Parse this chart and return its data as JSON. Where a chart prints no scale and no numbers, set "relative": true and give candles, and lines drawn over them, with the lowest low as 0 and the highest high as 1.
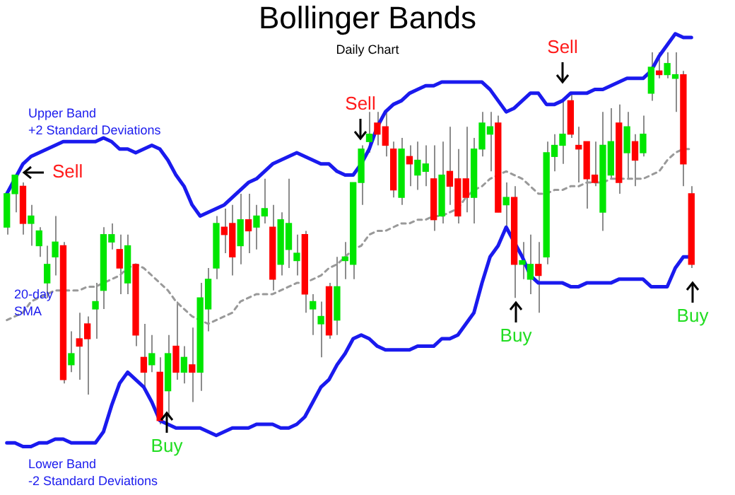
{
  "chart_data": {
    "type": "candlestick",
    "title": "Bollinger Bands",
    "subtitle": "Daily Chart",
    "relative": true,
    "tick_labels": false,
    "categories": [
      null,
      null,
      null,
      null,
      null,
      null,
      null,
      null,
      null,
      null,
      null,
      null,
      null,
      null,
      null,
      null,
      null,
      null,
      null,
      null,
      null,
      null,
      null,
      null,
      null,
      null,
      null,
      null,
      null,
      null,
      null,
      null,
      null,
      null,
      null,
      null,
      null,
      null,
      null,
      null,
      null,
      null,
      null,
      null,
      null,
      null,
      null,
      null,
      null,
      null,
      null,
      null,
      null,
      null,
      null,
      null,
      null,
      null,
      null,
      null,
      null,
      null,
      null,
      null,
      null,
      null,
      null,
      null,
      null,
      null,
      null,
      null,
      null,
      null,
      null,
      null,
      null,
      null,
      null,
      null,
      null,
      null,
      null,
      null,
      null,
      null
    ],
    "ohlc": [
      [
        0.53,
        0.62,
        0.51,
        0.62
      ],
      [
        0.62,
        0.67,
        0.57,
        0.67
      ],
      [
        0.64,
        0.65,
        0.51,
        0.54
      ],
      [
        0.54,
        0.59,
        0.48,
        0.56
      ],
      [
        0.48,
        0.53,
        0.45,
        0.52
      ],
      [
        0.38,
        0.48,
        0.34,
        0.43
      ],
      [
        0.45,
        0.56,
        0.4,
        0.49
      ],
      [
        0.48,
        0.49,
        0.11,
        0.12
      ],
      [
        0.16,
        0.25,
        0.14,
        0.19
      ],
      [
        0.23,
        0.3,
        0.12,
        0.21
      ],
      [
        0.27,
        0.29,
        0.08,
        0.23
      ],
      [
        0.31,
        0.38,
        0.23,
        0.33
      ],
      [
        0.36,
        0.53,
        0.31,
        0.51
      ],
      [
        0.49,
        0.54,
        0.47,
        0.51
      ],
      [
        0.47,
        0.51,
        0.35,
        0.42
      ],
      [
        0.38,
        0.51,
        0.35,
        0.48
      ],
      [
        0.43,
        0.43,
        0.21,
        0.24
      ],
      [
        0.18,
        0.27,
        0.1,
        0.14
      ],
      [
        0.16,
        0.24,
        0.14,
        0.19
      ],
      [
        0.14,
        0.18,
        0.0,
        0.01
      ],
      [
        0.09,
        0.24,
        0.02,
        0.19
      ],
      [
        0.21,
        0.33,
        0.12,
        0.14
      ],
      [
        0.14,
        0.21,
        0.11,
        0.18
      ],
      [
        0.16,
        0.26,
        0.06,
        0.14
      ],
      [
        0.14,
        0.38,
        0.09,
        0.34
      ],
      [
        0.31,
        0.42,
        0.25,
        0.39
      ],
      [
        0.42,
        0.56,
        0.39,
        0.54
      ],
      [
        0.53,
        0.58,
        0.46,
        0.51
      ],
      [
        0.54,
        0.59,
        0.4,
        0.45
      ],
      [
        0.48,
        0.62,
        0.43,
        0.55
      ],
      [
        0.55,
        0.62,
        0.46,
        0.52
      ],
      [
        0.53,
        0.59,
        0.47,
        0.56
      ],
      [
        0.56,
        0.66,
        0.54,
        0.58
      ],
      [
        0.53,
        0.59,
        0.36,
        0.39
      ],
      [
        0.43,
        0.57,
        0.4,
        0.55
      ],
      [
        0.47,
        0.66,
        0.42,
        0.54
      ],
      [
        0.44,
        0.51,
        0.4,
        0.46
      ],
      [
        0.51,
        0.52,
        0.3,
        0.35
      ],
      [
        0.31,
        0.35,
        0.24,
        0.33
      ],
      [
        0.27,
        0.33,
        0.18,
        0.29
      ],
      [
        0.37,
        0.38,
        0.23,
        0.24
      ],
      [
        0.28,
        0.45,
        0.24,
        0.37
      ],
      [
        0.44,
        0.49,
        0.39,
        0.45
      ],
      [
        0.43,
        0.65,
        0.39,
        0.65
      ],
      [
        0.65,
        0.75,
        0.59,
        0.74
      ],
      [
        0.76,
        0.84,
        0.73,
        0.78
      ],
      [
        0.81,
        0.84,
        0.75,
        0.78
      ],
      [
        0.8,
        0.84,
        0.72,
        0.75
      ],
      [
        0.74,
        0.76,
        0.61,
        0.63
      ],
      [
        0.61,
        0.77,
        0.59,
        0.74
      ],
      [
        0.72,
        0.75,
        0.64,
        0.7
      ],
      [
        0.67,
        0.76,
        0.63,
        0.71
      ],
      [
        0.68,
        0.75,
        0.64,
        0.7
      ],
      [
        0.66,
        0.75,
        0.52,
        0.55
      ],
      [
        0.56,
        0.76,
        0.54,
        0.67
      ],
      [
        0.68,
        0.8,
        0.59,
        0.64
      ],
      [
        0.66,
        0.74,
        0.54,
        0.56
      ],
      [
        0.66,
        0.8,
        0.57,
        0.61
      ],
      [
        0.61,
        0.77,
        0.54,
        0.74
      ],
      [
        0.74,
        0.84,
        0.72,
        0.81
      ],
      [
        0.78,
        0.84,
        0.68,
        0.8
      ],
      [
        0.81,
        0.83,
        0.57,
        0.57
      ],
      [
        0.59,
        0.65,
        0.53,
        0.61
      ],
      [
        0.61,
        0.64,
        0.34,
        0.43
      ],
      [
        0.43,
        0.49,
        0.39,
        0.44
      ],
      [
        0.39,
        0.51,
        0.35,
        0.43
      ],
      [
        0.43,
        0.49,
        0.3,
        0.4
      ],
      [
        0.45,
        0.76,
        0.43,
        0.73
      ],
      [
        0.72,
        0.78,
        0.68,
        0.75
      ],
      [
        0.75,
        0.87,
        0.7,
        0.78
      ],
      [
        0.87,
        0.89,
        0.77,
        0.78
      ],
      [
        0.75,
        0.8,
        0.65,
        0.74
      ],
      [
        0.76,
        0.76,
        0.58,
        0.66
      ],
      [
        0.67,
        0.76,
        0.64,
        0.65
      ],
      [
        0.57,
        0.84,
        0.52,
        0.75
      ],
      [
        0.67,
        0.85,
        0.66,
        0.76
      ],
      [
        0.81,
        0.86,
        0.62,
        0.65
      ],
      [
        0.73,
        0.84,
        0.66,
        0.8
      ],
      [
        0.76,
        0.78,
        0.64,
        0.71
      ],
      [
        0.73,
        0.83,
        0.72,
        0.78
      ],
      [
        0.89,
        1.0,
        0.87,
        0.96
      ],
      [
        0.95,
        1.0,
        0.93,
        0.94
      ],
      [
        0.94,
        1.0,
        0.93,
        0.97
      ],
      [
        0.93,
        1.0,
        0.84,
        0.94
      ],
      [
        0.94,
        0.95,
        0.64,
        0.7
      ],
      [
        0.62,
        0.64,
        0.42,
        0.43
      ]
    ],
    "colors": [
      "#00e600",
      "#00e600",
      "#ff0000",
      "#00e600",
      "#00e600",
      "#00e600",
      "#00e600",
      "#ff0000",
      "#00e600",
      "#ff0000",
      "#ff0000",
      "#00e600",
      "#00e600",
      "#00e600",
      "#ff0000",
      "#00e600",
      "#ff0000",
      "#ff0000",
      "#00e600",
      "#ff0000",
      "#00e600",
      "#ff0000",
      "#00e600",
      "#ff0000",
      "#00e600",
      "#00e600",
      "#00e600",
      "#ff0000",
      "#ff0000",
      "#00e600",
      "#ff0000",
      "#00e600",
      "#00e600",
      "#ff0000",
      "#00e600",
      "#00e600",
      "#00e600",
      "#ff0000",
      "#00e600",
      "#00e600",
      "#ff0000",
      "#00e600",
      "#00e600",
      "#00e600",
      "#00e600",
      "#00e600",
      "#ff0000",
      "#ff0000",
      "#ff0000",
      "#00e600",
      "#ff0000",
      "#00e600",
      "#00e600",
      "#ff0000",
      "#00e600",
      "#ff0000",
      "#ff0000",
      "#ff0000",
      "#00e600",
      "#00e600",
      "#00e600",
      "#ff0000",
      "#00e600",
      "#ff0000",
      "#00e600",
      "#00e600",
      "#ff0000",
      "#00e600",
      "#00e600",
      "#00e600",
      "#ff0000",
      "#ff0000",
      "#ff0000",
      "#ff0000",
      "#00e600",
      "#00e600",
      "#ff0000",
      "#00e600",
      "#ff0000",
      "#00e600",
      "#00e600",
      "#ff0000",
      "#00e600",
      "#00e600",
      "#ff0000",
      "#ff0000"
    ],
    "series": [
      {
        "type": "line",
        "name": "Upper Band\n+2 Standard Deviations",
        "color": "#1a1aee",
        "line_style": "solid",
        "values": [
          0.62,
          0.66,
          0.7,
          0.72,
          0.73,
          0.74,
          0.75,
          0.76,
          0.76,
          0.76,
          0.76,
          0.76,
          0.77,
          0.76,
          0.74,
          0.74,
          0.73,
          0.74,
          0.75,
          0.74,
          0.71,
          0.67,
          0.64,
          0.59,
          0.56,
          0.57,
          0.58,
          0.59,
          0.61,
          0.63,
          0.65,
          0.66,
          0.68,
          0.7,
          0.71,
          0.72,
          0.73,
          0.72,
          0.71,
          0.7,
          0.7,
          0.68,
          0.67,
          0.67,
          0.7,
          0.74,
          0.8,
          0.84,
          0.86,
          0.87,
          0.89,
          0.9,
          0.91,
          0.91,
          0.92,
          0.92,
          0.92,
          0.92,
          0.92,
          0.92,
          0.9,
          0.87,
          0.84,
          0.85,
          0.87,
          0.89,
          0.89,
          0.86,
          0.86,
          0.87,
          0.89,
          0.89,
          0.89,
          0.9,
          0.9,
          0.91,
          0.92,
          0.93,
          0.93,
          0.93,
          0.95,
          0.99,
          1.02,
          1.05,
          1.04,
          1.04
        ]
      },
      {
        "type": "line",
        "name": "20-day\nSMA",
        "color": "#999999",
        "line_style": "dotted",
        "values": [
          0.28,
          0.29,
          0.3,
          0.33,
          0.34,
          0.35,
          0.36,
          0.36,
          0.36,
          0.36,
          0.37,
          0.37,
          0.38,
          0.39,
          0.4,
          0.42,
          0.43,
          0.42,
          0.4,
          0.38,
          0.36,
          0.33,
          0.31,
          0.29,
          0.28,
          0.27,
          0.28,
          0.29,
          0.3,
          0.33,
          0.34,
          0.35,
          0.35,
          0.35,
          0.36,
          0.37,
          0.38,
          0.38,
          0.39,
          0.4,
          0.42,
          0.43,
          0.45,
          0.47,
          0.48,
          0.51,
          0.52,
          0.52,
          0.53,
          0.54,
          0.54,
          0.55,
          0.55,
          0.56,
          0.56,
          0.57,
          0.58,
          0.61,
          0.63,
          0.64,
          0.66,
          0.67,
          0.68,
          0.67,
          0.66,
          0.64,
          0.62,
          0.62,
          0.63,
          0.63,
          0.64,
          0.64,
          0.65,
          0.65,
          0.65,
          0.66,
          0.66,
          0.66,
          0.66,
          0.66,
          0.67,
          0.68,
          0.71,
          0.73,
          0.74,
          0.74
        ]
      },
      {
        "type": "line",
        "name": "Lower Band\n-2 Standard Deviations",
        "color": "#1a1aee",
        "line_style": "solid",
        "values": [
          -0.05,
          -0.05,
          -0.06,
          -0.06,
          -0.05,
          -0.05,
          -0.04,
          -0.04,
          -0.05,
          -0.05,
          -0.05,
          -0.05,
          -0.02,
          0.05,
          0.11,
          0.14,
          0.12,
          0.1,
          0.06,
          0.01,
          0.0,
          -0.01,
          -0.01,
          -0.01,
          -0.01,
          -0.02,
          -0.03,
          -0.02,
          -0.01,
          -0.01,
          -0.01,
          0.0,
          0.0,
          0.0,
          -0.01,
          -0.01,
          0.0,
          0.02,
          0.06,
          0.1,
          0.12,
          0.16,
          0.19,
          0.23,
          0.24,
          0.23,
          0.21,
          0.2,
          0.2,
          0.2,
          0.2,
          0.21,
          0.21,
          0.21,
          0.23,
          0.23,
          0.24,
          0.27,
          0.3,
          0.38,
          0.45,
          0.48,
          0.53,
          0.49,
          0.45,
          0.4,
          0.38,
          0.38,
          0.38,
          0.38,
          0.37,
          0.37,
          0.38,
          0.38,
          0.38,
          0.38,
          0.39,
          0.39,
          0.39,
          0.39,
          0.37,
          0.37,
          0.37,
          0.42,
          0.45,
          0.45
        ]
      }
    ],
    "annotations": [
      "Sell",
      "Sell",
      "Sell",
      "Buy",
      "Buy",
      "Buy"
    ]
  }
}
